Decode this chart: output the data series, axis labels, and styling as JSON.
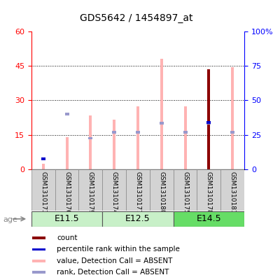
{
  "title": "GDS5642 / 1454897_at",
  "samples": [
    "GSM1310173",
    "GSM1310176",
    "GSM1310179",
    "GSM1310174",
    "GSM1310177",
    "GSM1310180",
    "GSM1310175",
    "GSM1310178",
    "GSM1310181"
  ],
  "age_groups": [
    {
      "label": "E11.5",
      "start": 0,
      "end": 3
    },
    {
      "label": "E12.5",
      "start": 3,
      "end": 6
    },
    {
      "label": "E14.5",
      "start": 6,
      "end": 9
    }
  ],
  "value_bars": [
    2.5,
    14.0,
    23.5,
    21.5,
    27.5,
    48.0,
    27.5,
    43.5,
    44.5
  ],
  "rank_marker_y": [
    4.5,
    24.0,
    13.5,
    16.0,
    16.0,
    20.0,
    16.0,
    20.0,
    16.0
  ],
  "count_bars": [
    0,
    0,
    0,
    0,
    0,
    0,
    0,
    43.5,
    0
  ],
  "percentile_marker_y": [
    0,
    0,
    0,
    0,
    0,
    0,
    0,
    20.5,
    0
  ],
  "small_blue_y": [
    4.5,
    0,
    0,
    0,
    0,
    0,
    0,
    0,
    0
  ],
  "left_ylim": [
    0,
    60
  ],
  "right_ylim": [
    0,
    100
  ],
  "left_yticks": [
    0,
    15,
    30,
    45,
    60
  ],
  "right_yticks": [
    0,
    25,
    50,
    75,
    100
  ],
  "right_yticklabels": [
    "0",
    "25",
    "50",
    "75",
    "100%"
  ],
  "color_value_bar": "#FFB3B3",
  "color_rank_marker": "#9999CC",
  "color_count": "#8B0000",
  "color_percentile": "#0000CC",
  "color_age_bg_light": "#C8F0C8",
  "color_age_bg_dark": "#66DD66",
  "color_sample_bg": "#D3D3D3",
  "legend_items": [
    {
      "color": "#8B0000",
      "label": "count"
    },
    {
      "color": "#0000CC",
      "label": "percentile rank within the sample"
    },
    {
      "color": "#FFB3B3",
      "label": "value, Detection Call = ABSENT"
    },
    {
      "color": "#9999CC",
      "label": "rank, Detection Call = ABSENT"
    }
  ]
}
